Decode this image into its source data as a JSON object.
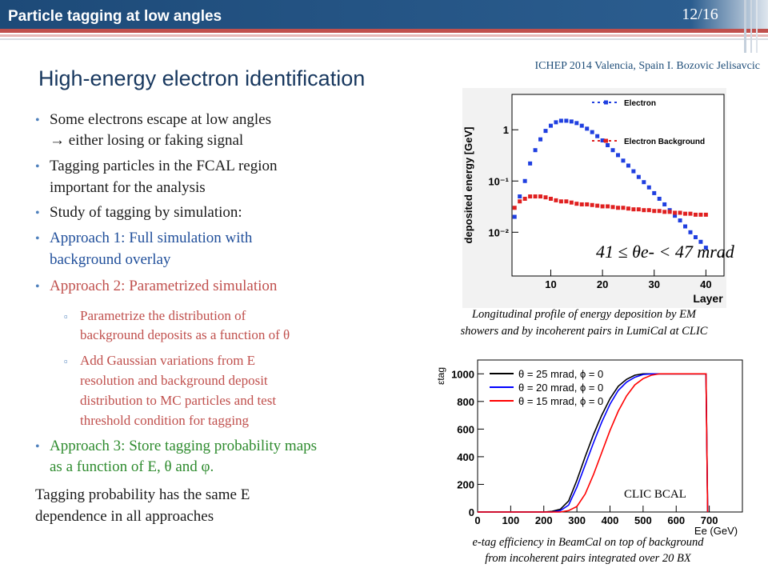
{
  "header": {
    "title": "Particle tagging at low angles",
    "page": "12/16"
  },
  "conference": "ICHEP 2014 Valencia, Spain I. Bozovic Jelisavcic",
  "heading": "High-energy electron identification",
  "bullets": [
    {
      "color": "#1a1a1a",
      "lines": [
        "Some electrons escape at low angles",
        "→ either losing or faking signal"
      ]
    },
    {
      "color": "#1a1a1a",
      "lines": [
        "Tagging particles in the FCAL region",
        "important for the analysis"
      ]
    },
    {
      "color": "#1a1a1a",
      "lines": [
        "Study of tagging by simulation:"
      ]
    },
    {
      "color": "#1f4e9a",
      "lines": [
        "Approach 1: Full simulation with",
        "background overlay"
      ]
    },
    {
      "color": "#c0504d",
      "lines": [
        "Approach 2: Parametrized simulation"
      ],
      "subitems": [
        {
          "lines": [
            "Parametrize the distribution of",
            "background deposits as a function of θ"
          ]
        },
        {
          "lines": [
            "Add Gaussian variations from E",
            "resolution and background deposit",
            "distribution to MC particles and test",
            "threshold condition for tagging"
          ]
        }
      ]
    },
    {
      "color": "#2e8b2e",
      "lines": [
        "Approach 3: Store tagging probability maps",
        "as a function of E, θ and φ."
      ]
    }
  ],
  "conclusion": [
    "Tagging probability has the same E",
    "dependence in all approaches"
  ],
  "chart_data": [
    {
      "type": "scatter",
      "log_y": true,
      "caption": [
        "Longitudinal profile of energy deposition by EM",
        "showers and by incoherent pairs in LumiCal at CLIC"
      ],
      "xlabel": "Layer",
      "ylabel": "deposited energy [GeV]",
      "annotation": "41 ≤ θe- < 47 mrad",
      "x": [
        3,
        4,
        5,
        6,
        7,
        8,
        9,
        10,
        11,
        12,
        13,
        14,
        15,
        16,
        17,
        18,
        19,
        20,
        21,
        22,
        23,
        24,
        25,
        26,
        27,
        28,
        29,
        30,
        31,
        32,
        33,
        34,
        35,
        36,
        37,
        38,
        39,
        40
      ],
      "series": [
        {
          "name": "Electron",
          "color": "#1f3fe0",
          "values": [
            0.02,
            0.05,
            0.1,
            0.22,
            0.4,
            0.65,
            0.95,
            1.2,
            1.4,
            1.5,
            1.5,
            1.45,
            1.35,
            1.2,
            1.05,
            0.9,
            0.75,
            0.62,
            0.5,
            0.4,
            0.32,
            0.25,
            0.2,
            0.155,
            0.12,
            0.095,
            0.075,
            0.058,
            0.045,
            0.035,
            0.027,
            0.021,
            0.017,
            0.013,
            0.01,
            0.008,
            0.0065,
            0.005
          ]
        },
        {
          "name": "Electron Background",
          "color": "#e02020",
          "values": [
            0.03,
            0.04,
            0.045,
            0.05,
            0.05,
            0.05,
            0.048,
            0.045,
            0.042,
            0.04,
            0.04,
            0.038,
            0.036,
            0.035,
            0.035,
            0.034,
            0.033,
            0.032,
            0.032,
            0.031,
            0.03,
            0.03,
            0.029,
            0.028,
            0.028,
            0.027,
            0.027,
            0.026,
            0.026,
            0.025,
            0.025,
            0.024,
            0.024,
            0.023,
            0.023,
            0.022,
            0.022,
            0.022
          ]
        }
      ],
      "xlim": [
        2.5,
        43.5
      ],
      "xticks": [
        10,
        20,
        30,
        40
      ],
      "ylim": [
        0.0014,
        4.9
      ],
      "yticks": [
        {
          "value": 0.01,
          "label": "10⁻²"
        },
        {
          "value": 0.1,
          "label": "10⁻¹"
        },
        1
      ]
    },
    {
      "type": "line",
      "caption": [
        "e-tag efficiency in BeamCal on top of background",
        "from incoherent pairs integrated over 20 BX"
      ],
      "xlabel": "Ee (GeV)",
      "ylabel": "εtag",
      "annotation": "CLIC BCAL",
      "x": [
        0,
        100,
        200,
        225,
        250,
        275,
        300,
        325,
        350,
        375,
        400,
        425,
        450,
        475,
        500,
        525,
        550,
        600,
        650,
        690,
        695
      ],
      "series": [
        {
          "name": "θ = 25 mrad, ϕ = 0",
          "color": "#000000",
          "values": [
            0,
            0,
            0,
            5,
            20,
            80,
            230,
            400,
            560,
            700,
            820,
            910,
            960,
            990,
            1000,
            1000,
            1000,
            1000,
            1000,
            1000,
            0
          ]
        },
        {
          "name": "θ = 20 mrad, ϕ = 0",
          "color": "#0000ff",
          "values": [
            0,
            0,
            0,
            0,
            10,
            50,
            180,
            340,
            500,
            650,
            780,
            880,
            940,
            975,
            995,
            1000,
            1000,
            1000,
            1000,
            1000,
            0
          ]
        },
        {
          "name": "θ = 15 mrad, ϕ = 0",
          "color": "#ff0000",
          "values": [
            0,
            0,
            0,
            0,
            0,
            10,
            40,
            130,
            270,
            430,
            590,
            730,
            840,
            920,
            965,
            990,
            1000,
            1000,
            1000,
            1000,
            0
          ]
        }
      ],
      "xlim": [
        0,
        800
      ],
      "xticks": [
        0,
        100,
        200,
        300,
        400,
        500,
        600,
        700
      ],
      "ylim": [
        0,
        1100
      ],
      "yticks": [
        0,
        200,
        400,
        600,
        800,
        1000
      ]
    }
  ]
}
